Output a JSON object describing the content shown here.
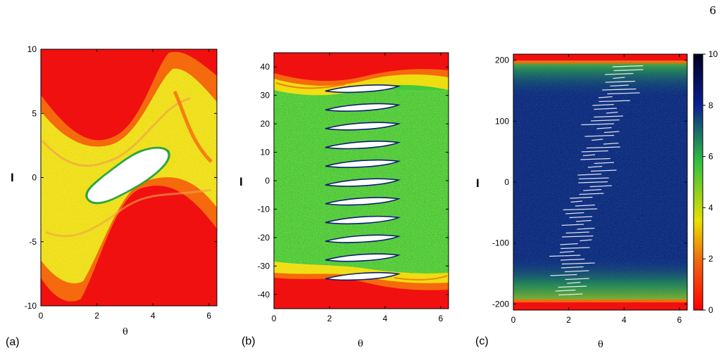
{
  "page_number": "6",
  "colors": {
    "outer_red": "#f01010",
    "orange": "#f56a0c",
    "yellow": "#eedd10",
    "green": "#3fc93f",
    "navy": "#0e2a80",
    "white": "#ffffff"
  },
  "chart_data": [
    {
      "type": "heatmap",
      "panel_label": "(a)",
      "xlabel": "θ",
      "ylabel": "I",
      "xlim": [
        0,
        6.283
      ],
      "ylim": [
        -10,
        10
      ],
      "xticks": [
        "0",
        "2",
        "4",
        "6"
      ],
      "yticks": [
        "-10",
        "-5",
        "0",
        "5",
        "10"
      ],
      "legend": "none",
      "grid": false
    },
    {
      "type": "heatmap",
      "panel_label": "(b)",
      "xlabel": "θ",
      "ylabel": "I",
      "xlim": [
        0,
        6.283
      ],
      "ylim": [
        -45,
        45
      ],
      "xticks": [
        "0",
        "2",
        "4",
        "6"
      ],
      "yticks": [
        "-40",
        "-30",
        "-20",
        "-10",
        "0",
        "10",
        "20",
        "30",
        "40"
      ],
      "legend": "none",
      "grid": false
    },
    {
      "type": "heatmap",
      "panel_label": "(c)",
      "xlabel": "θ",
      "ylabel": "I",
      "xlim": [
        0,
        6.283
      ],
      "ylim": [
        -210,
        210
      ],
      "xticks": [
        "0",
        "2",
        "4",
        "6"
      ],
      "yticks": [
        "-200",
        "-100",
        "0",
        "100",
        "200"
      ],
      "colorbar": {
        "ticks": [
          "0",
          "2",
          "4",
          "6",
          "8",
          "10"
        ],
        "range": [
          0,
          10
        ],
        "stops": [
          "#ff0000",
          "#f06010",
          "#e8e000",
          "#30c040",
          "#0a2090",
          "#000020"
        ]
      },
      "grid": false
    }
  ]
}
